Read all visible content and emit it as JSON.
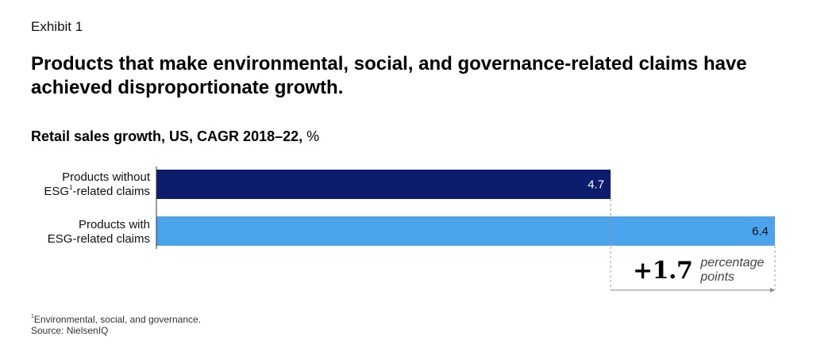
{
  "exhibit": "Exhibit 1",
  "headline": "Products that make environmental, social, and governance-related claims have achieved disproportionate growth.",
  "subtitle": {
    "bold": "Retail sales growth, US, CAGR 2018–22,",
    "unit": " %"
  },
  "chart_data": {
    "type": "bar",
    "orientation": "horizontal",
    "title": "Retail sales growth, US, CAGR 2018–22, %",
    "categories": [
      {
        "line1": "Products without",
        "line2a": "ESG",
        "sup": "1",
        "line2b": "-related claims"
      },
      {
        "line1": "Products with",
        "line2a": "ESG-related claims",
        "sup": "",
        "line2b": ""
      }
    ],
    "values": [
      4.7,
      6.4
    ],
    "value_labels": [
      "4.7",
      "6.4"
    ],
    "colors": [
      "#0c1d6e",
      "#4ba3ec"
    ],
    "xlim": [
      0,
      6.4
    ],
    "difference": {
      "value": "+1.7",
      "unit_line1": "percentage",
      "unit_line2": "points"
    }
  },
  "footnote": {
    "sup": "1",
    "text": "Environmental, social, and governance.",
    "source": "Source: NielsenIQ"
  }
}
